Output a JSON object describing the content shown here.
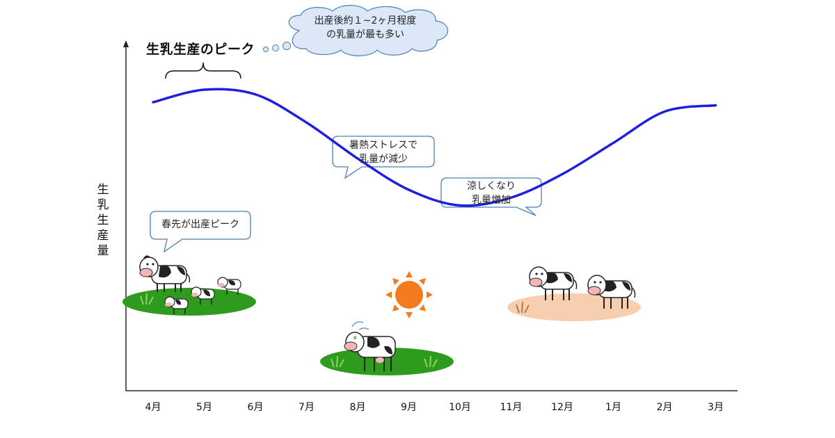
{
  "chart_data": {
    "type": "line",
    "title": "",
    "ylabel": "生乳生産量",
    "xlabel": "",
    "categories": [
      "4月",
      "5月",
      "6月",
      "7月",
      "8月",
      "9月",
      "10月",
      "11月",
      "12月",
      "1月",
      "2月",
      "3月"
    ],
    "series": [
      {
        "values": [
          0.88,
          0.96,
          0.93,
          0.75,
          0.52,
          0.32,
          0.22,
          0.27,
          0.42,
          0.62,
          0.82,
          0.86
        ]
      }
    ],
    "ylim": [
      0,
      1
    ],
    "grid": false,
    "line_color": "#1f1fe0"
  },
  "annotations": {
    "peak_title": "生乳生産のピーク",
    "peak_cloud_line1": "出産後約１~2ヶ月程度",
    "peak_cloud_line2": "の乳量が最も多い",
    "spring_callout": "春先が出産ピーク",
    "summer_callout_line1": "暑熱ストレスで",
    "summer_callout_line2": "乳量が減少",
    "autumn_callout_line1": "涼しくなり",
    "autumn_callout_line2": "乳量増加"
  },
  "colors": {
    "grass": "#2e9a1e",
    "ground_autumn": "#f7cfae",
    "sun": "#f47b20",
    "callout_border": "#4a7fb5",
    "cloud_fill": "#dce8f7"
  },
  "icons": [
    "cow-icon",
    "calf-icon",
    "sun-icon",
    "thought-cloud-icon",
    "brace-icon"
  ]
}
